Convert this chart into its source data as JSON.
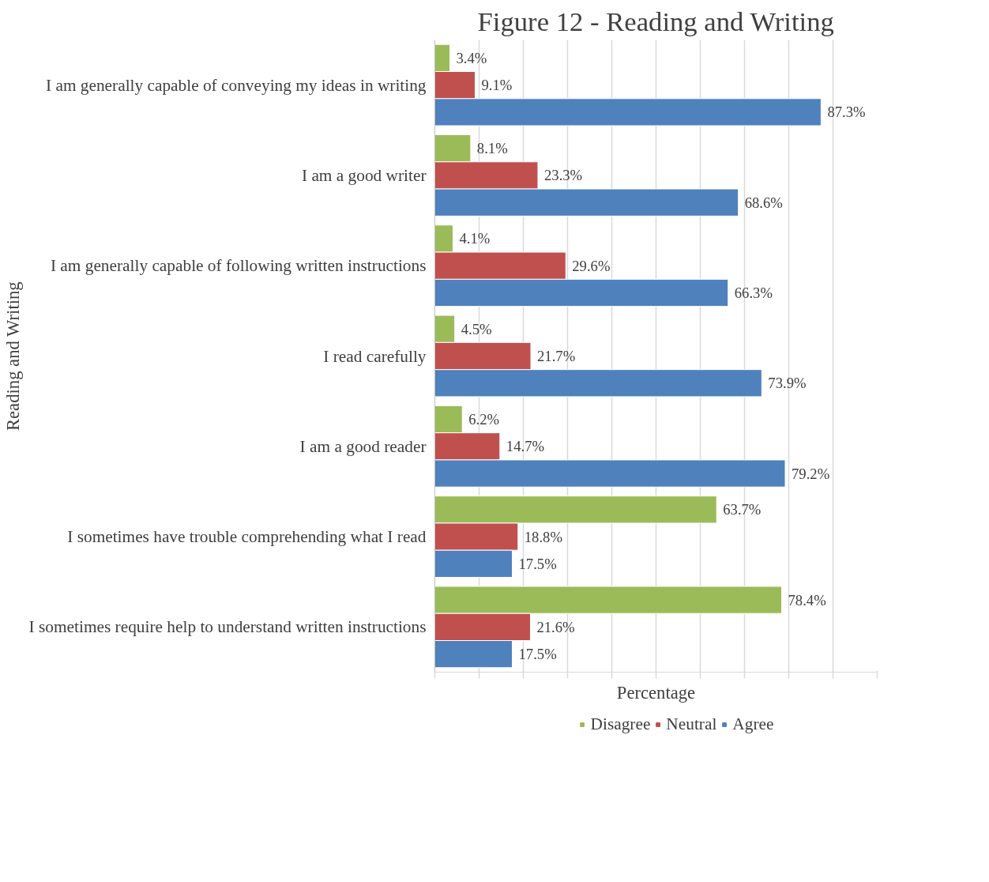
{
  "chart_data": {
    "type": "bar",
    "orientation": "horizontal",
    "title": "Figure 12 - Reading and Writing",
    "xlabel": "Percentage",
    "ylabel": "Reading and Writing",
    "categories": [
      "I am generally capable of conveying my ideas in writing",
      "I am a good writer",
      "I am generally capable of following written instructions",
      "I read carefully",
      "I am a good reader",
      "I sometimes have trouble comprehending what I read",
      "I sometimes require help to understand written instructions"
    ],
    "series": [
      {
        "name": "Disagree",
        "color": "#9bbb59",
        "values": [
          3.4,
          8.1,
          4.1,
          4.5,
          6.2,
          63.7,
          78.4
        ],
        "value_labels": [
          "3.4%",
          "8.1%",
          "4.1%",
          "4.5%",
          "6.2%",
          "63.7%",
          "78.4%"
        ]
      },
      {
        "name": "Neutral",
        "color": "#c0504d",
        "values": [
          9.1,
          23.3,
          29.6,
          21.7,
          14.7,
          18.8,
          21.6
        ],
        "value_labels": [
          "9.1%",
          "23.3%",
          "29.6%",
          "21.7%",
          "14.7%",
          "18.8%",
          "21.6%"
        ]
      },
      {
        "name": "Agree",
        "color": "#4f81bd",
        "values": [
          87.3,
          68.6,
          66.3,
          73.9,
          79.2,
          17.5,
          17.5
        ],
        "value_labels": [
          "87.3%",
          "68.6%",
          "66.3%",
          "73.9%",
          "79.2%",
          "17.5%",
          "17.5%"
        ]
      }
    ],
    "xlim": [
      0,
      100
    ],
    "xticks": [
      {
        "value": 0,
        "label": null
      },
      {
        "value": 10,
        "label": null
      },
      {
        "value": 20,
        "label": null
      },
      {
        "value": 30,
        "label": null
      },
      {
        "value": 40,
        "label": null
      },
      {
        "value": 50,
        "label": null
      },
      {
        "value": 60,
        "label": null
      },
      {
        "value": 70,
        "label": null
      },
      {
        "value": 80,
        "label": null
      },
      {
        "value": 90,
        "label": null
      },
      {
        "value": 100,
        "label": null
      }
    ],
    "grid": "x",
    "legend": "bottom",
    "tick_labels": "y"
  }
}
